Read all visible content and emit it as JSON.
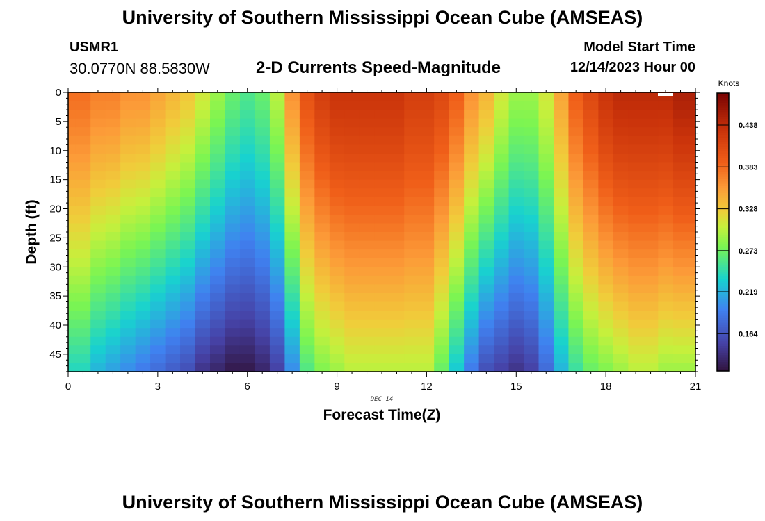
{
  "header": {
    "title": "University of Southern Mississippi Ocean Cube (AMSEAS)",
    "station_name": "USMR1",
    "station_coords": "30.0770N  88.5830W",
    "subtitle": "2-D Currents Speed-Magnitude",
    "start_label": "Model Start Time",
    "start_value": "12/14/2023 Hour 00"
  },
  "footer": {
    "title": "University of Southern Mississippi Ocean Cube (AMSEAS)"
  },
  "chart_data": {
    "type": "heatmap",
    "title": "2-D Currents Speed-Magnitude",
    "xlabel": "Forecast Time(Z)",
    "ylabel": "Depth (ft)",
    "x_date_label": "DEC 14",
    "xlim": [
      0,
      21
    ],
    "ylim": [
      0,
      48
    ],
    "y_inverted": true,
    "x_ticks": [
      0,
      3,
      6,
      9,
      12,
      15,
      18,
      21
    ],
    "y_ticks": [
      0,
      5,
      10,
      15,
      20,
      25,
      30,
      35,
      40,
      45
    ],
    "colorbar": {
      "label": "Knots",
      "ticks": [
        0.164,
        0.219,
        0.273,
        0.328,
        0.383,
        0.438
      ],
      "range": [
        0.115,
        0.48
      ]
    },
    "times": [
      0,
      0.5,
      1,
      1.5,
      2,
      2.5,
      3,
      3.5,
      4,
      4.5,
      5,
      5.5,
      6,
      6.5,
      7,
      7.5,
      8,
      8.5,
      9,
      9.5,
      10,
      10.5,
      11,
      11.5,
      12,
      12.5,
      13,
      13.5,
      14,
      14.5,
      15,
      15.5,
      16,
      16.5,
      17,
      17.5,
      18,
      18.5,
      19,
      19.5,
      20,
      20.5,
      21
    ],
    "surface_speed": [
      0.38,
      0.38,
      0.37,
      0.37,
      0.36,
      0.36,
      0.35,
      0.34,
      0.33,
      0.31,
      0.29,
      0.27,
      0.26,
      0.27,
      0.3,
      0.36,
      0.4,
      0.42,
      0.43,
      0.43,
      0.43,
      0.43,
      0.43,
      0.42,
      0.42,
      0.41,
      0.39,
      0.36,
      0.34,
      0.31,
      0.29,
      0.29,
      0.31,
      0.35,
      0.39,
      0.41,
      0.43,
      0.44,
      0.44,
      0.44,
      0.44,
      0.45,
      0.45
    ],
    "bottom_speed": [
      0.24,
      0.24,
      0.22,
      0.21,
      0.2,
      0.19,
      0.18,
      0.17,
      0.16,
      0.14,
      0.13,
      0.12,
      0.12,
      0.13,
      0.15,
      0.2,
      0.26,
      0.28,
      0.29,
      0.3,
      0.3,
      0.3,
      0.3,
      0.3,
      0.3,
      0.27,
      0.23,
      0.19,
      0.16,
      0.15,
      0.14,
      0.15,
      0.18,
      0.22,
      0.25,
      0.27,
      0.28,
      0.29,
      0.3,
      0.3,
      0.29,
      0.29,
      0.29
    ],
    "depth_profile_exponent": 1.2
  }
}
